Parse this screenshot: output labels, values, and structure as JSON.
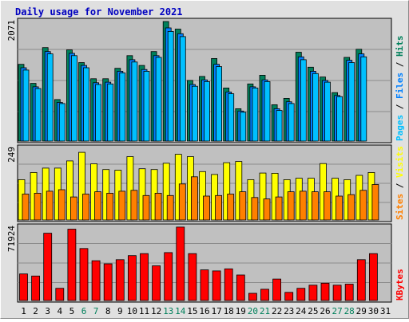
{
  "title": "Daily usage for November 2021",
  "colors": {
    "panel_bg": "#c0c0c0",
    "pages": "#00c0ff",
    "files": "#0080ff",
    "hits": "#00805b",
    "sites": "#ff8000",
    "visits": "#ffff00",
    "kbytes": "#ff0000",
    "weekend": "#00805b",
    "weekday": "#000000"
  },
  "chart_data": [
    {
      "type": "bar",
      "panel": "hits",
      "ymax_label": "2071",
      "ylim": [
        0,
        2071
      ],
      "side_labels": [
        "Pages",
        "Files",
        "Hits"
      ],
      "x": [
        1,
        2,
        3,
        4,
        5,
        6,
        7,
        8,
        9,
        10,
        11,
        12,
        13,
        14,
        15,
        16,
        17,
        18,
        19,
        20,
        21,
        22,
        23,
        24,
        25,
        26,
        27,
        28,
        29,
        30,
        31
      ],
      "series": [
        {
          "name": "Hits",
          "values": [
            1330,
            1000,
            1620,
            720,
            1580,
            1360,
            1080,
            1080,
            1260,
            1480,
            1310,
            1550,
            2071,
            1940,
            1050,
            1120,
            1430,
            920,
            560,
            990,
            1140,
            630,
            740,
            1540,
            1280,
            1110,
            840,
            1450,
            1590,
            0,
            0
          ]
        },
        {
          "name": "Files",
          "values": [
            1270,
            940,
            1550,
            670,
            1520,
            1310,
            1010,
            1020,
            1210,
            1410,
            1240,
            1480,
            1960,
            1860,
            980,
            1060,
            1330,
            850,
            520,
            940,
            1060,
            560,
            680,
            1460,
            1210,
            1050,
            790,
            1400,
            1510,
            0,
            0
          ]
        },
        {
          "name": "Pages",
          "values": [
            1230,
            910,
            1510,
            650,
            1480,
            1270,
            980,
            990,
            1180,
            1370,
            1210,
            1450,
            1900,
            1810,
            950,
            1030,
            1290,
            820,
            500,
            920,
            1030,
            530,
            650,
            1410,
            1170,
            1020,
            770,
            1360,
            1460,
            0,
            0
          ]
        }
      ]
    },
    {
      "type": "bar",
      "panel": "visits",
      "ymax_label": "249",
      "ylim": [
        0,
        249
      ],
      "side_labels": [
        "Sites",
        "Visits"
      ],
      "x": [
        1,
        2,
        3,
        4,
        5,
        6,
        7,
        8,
        9,
        10,
        11,
        12,
        13,
        14,
        15,
        16,
        17,
        18,
        19,
        20,
        21,
        22,
        23,
        24,
        25,
        26,
        27,
        28,
        29,
        30,
        31
      ],
      "series": [
        {
          "name": "Visits",
          "values": [
            140,
            165,
            180,
            180,
            205,
            235,
            195,
            175,
            173,
            220,
            178,
            175,
            197,
            228,
            220,
            168,
            158,
            199,
            203,
            140,
            163,
            162,
            140,
            145,
            145,
            196,
            145,
            140,
            155,
            165,
            0
          ]
        },
        {
          "name": "Sites",
          "values": [
            90,
            93,
            100,
            105,
            80,
            90,
            98,
            93,
            100,
            103,
            85,
            93,
            85,
            125,
            150,
            83,
            85,
            90,
            98,
            78,
            73,
            80,
            98,
            100,
            98,
            98,
            83,
            88,
            103,
            123,
            0
          ]
        }
      ]
    },
    {
      "type": "bar",
      "panel": "kbytes",
      "ymax_label": "71924",
      "ylim": [
        0,
        71924
      ],
      "side_labels": [
        "KBytes"
      ],
      "x": [
        1,
        2,
        3,
        4,
        5,
        6,
        7,
        8,
        9,
        10,
        11,
        12,
        13,
        14,
        15,
        16,
        17,
        18,
        19,
        20,
        21,
        22,
        23,
        24,
        25,
        26,
        27,
        28,
        29,
        30,
        31
      ],
      "series": [
        {
          "name": "KBytes",
          "values": [
            26000,
            24000,
            66000,
            12000,
            70000,
            51000,
            39000,
            36000,
            40000,
            44000,
            46000,
            34000,
            47000,
            72000,
            46000,
            30000,
            29000,
            31000,
            25000,
            7000,
            11000,
            21000,
            8000,
            12000,
            15000,
            17000,
            15000,
            16000,
            40000,
            46000,
            0
          ]
        }
      ]
    }
  ],
  "days": [
    {
      "label": "1",
      "weekend": false
    },
    {
      "label": "2",
      "weekend": false
    },
    {
      "label": "3",
      "weekend": false
    },
    {
      "label": "4",
      "weekend": false
    },
    {
      "label": "5",
      "weekend": false
    },
    {
      "label": "6",
      "weekend": true
    },
    {
      "label": "7",
      "weekend": true
    },
    {
      "label": "8",
      "weekend": false
    },
    {
      "label": "9",
      "weekend": false
    },
    {
      "label": "10",
      "weekend": false
    },
    {
      "label": "11",
      "weekend": false
    },
    {
      "label": "12",
      "weekend": false
    },
    {
      "label": "13",
      "weekend": true
    },
    {
      "label": "14",
      "weekend": true
    },
    {
      "label": "15",
      "weekend": false
    },
    {
      "label": "16",
      "weekend": false
    },
    {
      "label": "17",
      "weekend": false
    },
    {
      "label": "18",
      "weekend": false
    },
    {
      "label": "19",
      "weekend": false
    },
    {
      "label": "20",
      "weekend": true
    },
    {
      "label": "21",
      "weekend": true
    },
    {
      "label": "22",
      "weekend": false
    },
    {
      "label": "23",
      "weekend": false
    },
    {
      "label": "24",
      "weekend": false
    },
    {
      "label": "25",
      "weekend": false
    },
    {
      "label": "26",
      "weekend": false
    },
    {
      "label": "27",
      "weekend": true
    },
    {
      "label": "28",
      "weekend": true
    },
    {
      "label": "29",
      "weekend": false
    },
    {
      "label": "30",
      "weekend": false
    },
    {
      "label": "31",
      "weekend": false
    }
  ]
}
